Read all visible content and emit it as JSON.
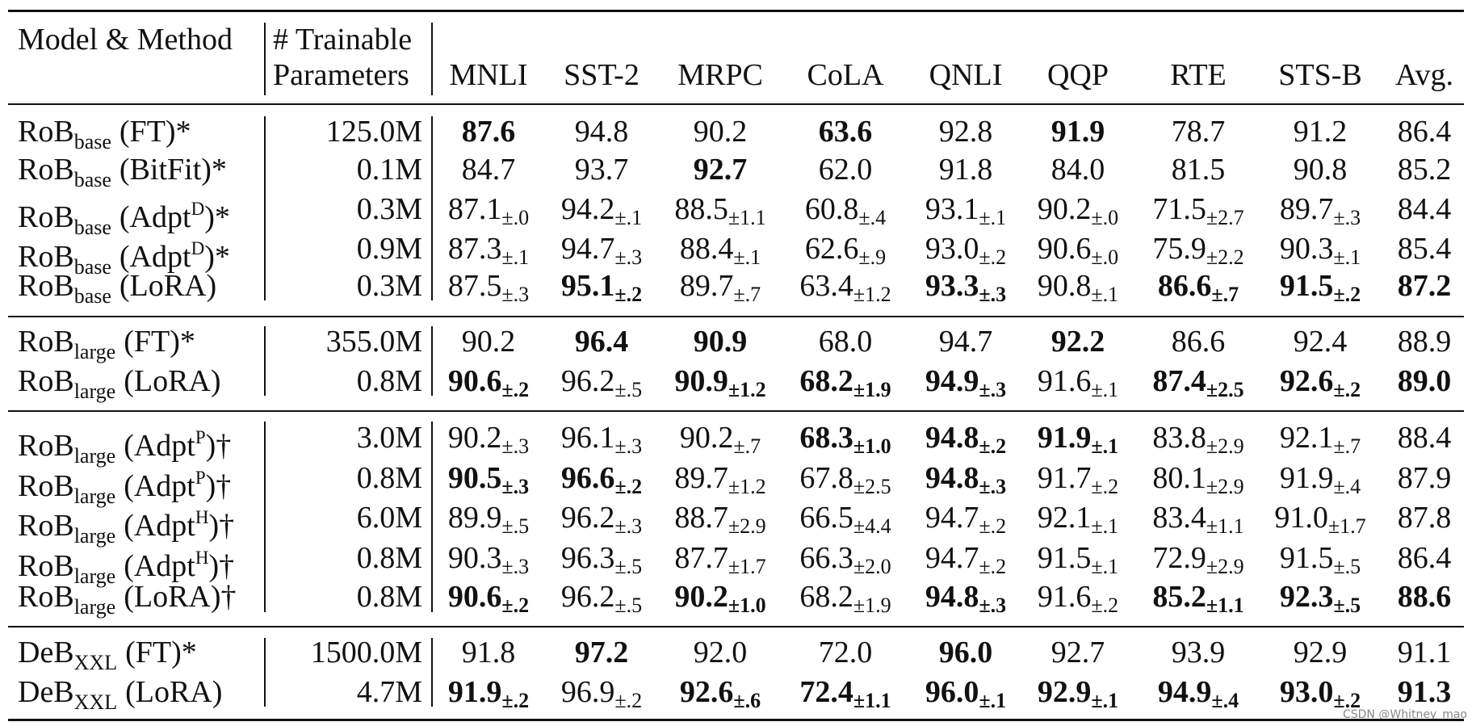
{
  "header": {
    "model": "Model & Method",
    "params": [
      "# Trainable",
      "Parameters"
    ],
    "tasks": [
      "MNLI",
      "SST-2",
      "MRPC",
      "CoLA",
      "QNLI",
      "QQP",
      "RTE",
      "STS-B",
      "Avg."
    ]
  },
  "groups": [
    {
      "rows": [
        {
          "model": {
            "name": "RoB",
            "sub": "base",
            "method": "(FT)*"
          },
          "params": "125.0M",
          "cells": [
            {
              "v": "87.6",
              "bold": true
            },
            {
              "v": "94.8"
            },
            {
              "v": "90.2"
            },
            {
              "v": "63.6",
              "bold": true
            },
            {
              "v": "92.8"
            },
            {
              "v": "91.9",
              "bold": true
            },
            {
              "v": "78.7"
            },
            {
              "v": "91.2"
            },
            {
              "v": "86.4"
            }
          ]
        },
        {
          "model": {
            "name": "RoB",
            "sub": "base",
            "method": "(BitFit)*"
          },
          "params": "0.1M",
          "cells": [
            {
              "v": "84.7"
            },
            {
              "v": "93.7"
            },
            {
              "v": "92.7",
              "bold": true
            },
            {
              "v": "62.0"
            },
            {
              "v": "91.8"
            },
            {
              "v": "84.0"
            },
            {
              "v": "81.5"
            },
            {
              "v": "90.8"
            },
            {
              "v": "85.2"
            }
          ]
        },
        {
          "model": {
            "name": "RoB",
            "sub": "base",
            "method": "(Adpt",
            "sup": "D",
            "end": ")*"
          },
          "params": "0.3M",
          "cells": [
            {
              "v": "87.1",
              "e": "±.0"
            },
            {
              "v": "94.2",
              "e": "±.1"
            },
            {
              "v": "88.5",
              "e": "±1.1"
            },
            {
              "v": "60.8",
              "e": "±.4"
            },
            {
              "v": "93.1",
              "e": "±.1"
            },
            {
              "v": "90.2",
              "e": "±.0"
            },
            {
              "v": "71.5",
              "e": "±2.7"
            },
            {
              "v": "89.7",
              "e": "±.3"
            },
            {
              "v": "84.4"
            }
          ]
        },
        {
          "model": {
            "name": "RoB",
            "sub": "base",
            "method": "(Adpt",
            "sup": "D",
            "end": ")*"
          },
          "params": "0.9M",
          "cells": [
            {
              "v": "87.3",
              "e": "±.1"
            },
            {
              "v": "94.7",
              "e": "±.3"
            },
            {
              "v": "88.4",
              "e": "±.1"
            },
            {
              "v": "62.6",
              "e": "±.9"
            },
            {
              "v": "93.0",
              "e": "±.2"
            },
            {
              "v": "90.6",
              "e": "±.0"
            },
            {
              "v": "75.9",
              "e": "±2.2"
            },
            {
              "v": "90.3",
              "e": "±.1"
            },
            {
              "v": "85.4"
            }
          ]
        },
        {
          "model": {
            "name": "RoB",
            "sub": "base",
            "method": "(LoRA)"
          },
          "params": "0.3M",
          "cells": [
            {
              "v": "87.5",
              "e": "±.3"
            },
            {
              "v": "95.1",
              "e": "±.2",
              "bold": true
            },
            {
              "v": "89.7",
              "e": "±.7"
            },
            {
              "v": "63.4",
              "e": "±1.2"
            },
            {
              "v": "93.3",
              "e": "±.3",
              "bold": true
            },
            {
              "v": "90.8",
              "e": "±.1"
            },
            {
              "v": "86.6",
              "e": "±.7",
              "bold": true
            },
            {
              "v": "91.5",
              "e": "±.2",
              "bold": true
            },
            {
              "v": "87.2",
              "bold": true
            }
          ]
        }
      ]
    },
    {
      "rows": [
        {
          "model": {
            "name": "RoB",
            "sub": "large",
            "method": "(FT)*"
          },
          "params": "355.0M",
          "cells": [
            {
              "v": "90.2"
            },
            {
              "v": "96.4",
              "bold": true
            },
            {
              "v": "90.9",
              "bold": true
            },
            {
              "v": "68.0"
            },
            {
              "v": "94.7"
            },
            {
              "v": "92.2",
              "bold": true
            },
            {
              "v": "86.6"
            },
            {
              "v": "92.4"
            },
            {
              "v": "88.9"
            }
          ]
        },
        {
          "model": {
            "name": "RoB",
            "sub": "large",
            "method": "(LoRA)"
          },
          "params": "0.8M",
          "cells": [
            {
              "v": "90.6",
              "e": "±.2",
              "bold": true
            },
            {
              "v": "96.2",
              "e": "±.5"
            },
            {
              "v": "90.9",
              "e": "±1.2",
              "bold": true
            },
            {
              "v": "68.2",
              "e": "±1.9",
              "bold": true
            },
            {
              "v": "94.9",
              "e": "±.3",
              "bold": true
            },
            {
              "v": "91.6",
              "e": "±.1"
            },
            {
              "v": "87.4",
              "e": "±2.5",
              "bold": true
            },
            {
              "v": "92.6",
              "e": "±.2",
              "bold": true
            },
            {
              "v": "89.0",
              "bold": true
            }
          ]
        }
      ]
    },
    {
      "rows": [
        {
          "model": {
            "name": "RoB",
            "sub": "large",
            "method": "(Adpt",
            "sup": "P",
            "end": ")†"
          },
          "params": "3.0M",
          "cells": [
            {
              "v": "90.2",
              "e": "±.3"
            },
            {
              "v": "96.1",
              "e": "±.3"
            },
            {
              "v": "90.2",
              "e": "±.7"
            },
            {
              "v": "68.3",
              "e": "±1.0",
              "bold": true
            },
            {
              "v": "94.8",
              "e": "±.2",
              "bold": true
            },
            {
              "v": "91.9",
              "e": "±.1",
              "bold": true
            },
            {
              "v": "83.8",
              "e": "±2.9"
            },
            {
              "v": "92.1",
              "e": "±.7"
            },
            {
              "v": "88.4"
            }
          ]
        },
        {
          "model": {
            "name": "RoB",
            "sub": "large",
            "method": "(Adpt",
            "sup": "P",
            "end": ")†"
          },
          "params": "0.8M",
          "cells": [
            {
              "v": "90.5",
              "e": "±.3",
              "bold": true
            },
            {
              "v": "96.6",
              "e": "±.2",
              "bold": true
            },
            {
              "v": "89.7",
              "e": "±1.2"
            },
            {
              "v": "67.8",
              "e": "±2.5"
            },
            {
              "v": "94.8",
              "e": "±.3",
              "bold": true
            },
            {
              "v": "91.7",
              "e": "±.2"
            },
            {
              "v": "80.1",
              "e": "±2.9"
            },
            {
              "v": "91.9",
              "e": "±.4"
            },
            {
              "v": "87.9"
            }
          ]
        },
        {
          "model": {
            "name": "RoB",
            "sub": "large",
            "method": "(Adpt",
            "sup": "H",
            "end": ")†"
          },
          "params": "6.0M",
          "cells": [
            {
              "v": "89.9",
              "e": "±.5"
            },
            {
              "v": "96.2",
              "e": "±.3"
            },
            {
              "v": "88.7",
              "e": "±2.9"
            },
            {
              "v": "66.5",
              "e": "±4.4"
            },
            {
              "v": "94.7",
              "e": "±.2"
            },
            {
              "v": "92.1",
              "e": "±.1"
            },
            {
              "v": "83.4",
              "e": "±1.1"
            },
            {
              "v": "91.0",
              "e": "±1.7"
            },
            {
              "v": "87.8"
            }
          ]
        },
        {
          "model": {
            "name": "RoB",
            "sub": "large",
            "method": "(Adpt",
            "sup": "H",
            "end": ")†"
          },
          "params": "0.8M",
          "cells": [
            {
              "v": "90.3",
              "e": "±.3"
            },
            {
              "v": "96.3",
              "e": "±.5"
            },
            {
              "v": "87.7",
              "e": "±1.7"
            },
            {
              "v": "66.3",
              "e": "±2.0"
            },
            {
              "v": "94.7",
              "e": "±.2"
            },
            {
              "v": "91.5",
              "e": "±.1"
            },
            {
              "v": "72.9",
              "e": "±2.9"
            },
            {
              "v": "91.5",
              "e": "±.5"
            },
            {
              "v": "86.4"
            }
          ]
        },
        {
          "model": {
            "name": "RoB",
            "sub": "large",
            "method": "(LoRA)†"
          },
          "params": "0.8M",
          "cells": [
            {
              "v": "90.6",
              "e": "±.2",
              "bold": true
            },
            {
              "v": "96.2",
              "e": "±.5"
            },
            {
              "v": "90.2",
              "e": "±1.0",
              "bold": true
            },
            {
              "v": "68.2",
              "e": "±1.9"
            },
            {
              "v": "94.8",
              "e": "±.3",
              "bold": true
            },
            {
              "v": "91.6",
              "e": "±.2"
            },
            {
              "v": "85.2",
              "e": "±1.1",
              "bold": true
            },
            {
              "v": "92.3",
              "e": "±.5",
              "bold": true
            },
            {
              "v": "88.6",
              "bold": true
            }
          ]
        }
      ]
    },
    {
      "rows": [
        {
          "model": {
            "name": "DeB",
            "sub": "XXL",
            "method": "(FT)*"
          },
          "params": "1500.0M",
          "cells": [
            {
              "v": "91.8"
            },
            {
              "v": "97.2",
              "bold": true
            },
            {
              "v": "92.0"
            },
            {
              "v": "72.0"
            },
            {
              "v": "96.0",
              "bold": true
            },
            {
              "v": "92.7"
            },
            {
              "v": "93.9"
            },
            {
              "v": "92.9"
            },
            {
              "v": "91.1"
            }
          ]
        },
        {
          "model": {
            "name": "DeB",
            "sub": "XXL",
            "method": "(LoRA)"
          },
          "params": "4.7M",
          "cells": [
            {
              "v": "91.9",
              "e": "±.2",
              "bold": true
            },
            {
              "v": "96.9",
              "e": "±.2"
            },
            {
              "v": "92.6",
              "e": "±.6",
              "bold": true
            },
            {
              "v": "72.4",
              "e": "±1.1",
              "bold": true
            },
            {
              "v": "96.0",
              "e": "±.1",
              "bold": true
            },
            {
              "v": "92.9",
              "e": "±.1",
              "bold": true
            },
            {
              "v": "94.9",
              "e": "±.4",
              "bold": true
            },
            {
              "v": "93.0",
              "e": "±.2",
              "bold": true
            },
            {
              "v": "91.3",
              "bold": true
            }
          ]
        }
      ]
    }
  ],
  "watermark": "CSDN @Whitney_mao"
}
